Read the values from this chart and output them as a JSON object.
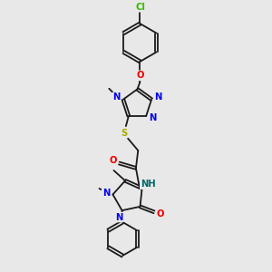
{
  "bg": "#e8e8e8",
  "bc": "#1a1a1a",
  "bw": 1.3,
  "dbo": 0.05,
  "col_N": "#0000ee",
  "col_O": "#ee0000",
  "col_S": "#aaaa00",
  "col_Cl": "#33bb00",
  "col_NH": "#006666",
  "fs": 7.2,
  "figw": 3.0,
  "figh": 3.0,
  "dpi": 100,
  "xlim": [
    0,
    10
  ],
  "ylim": [
    0,
    10
  ]
}
